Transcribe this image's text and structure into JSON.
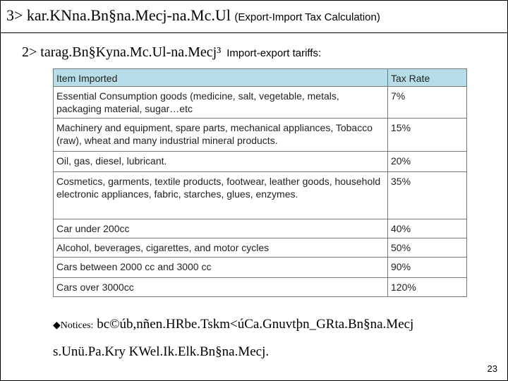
{
  "heading": {
    "title": "3> kar.KNna.Bn§na.Mecj-na.Mc.Ul",
    "subtitle": "(Export-Import Tax Calculation)"
  },
  "subheading": {
    "title": "2> tarag.Bn§Kyna.Mc.Ul-na.Mecj³",
    "subtitle": "Import-export tariffs:"
  },
  "table": {
    "header": [
      "Item Imported",
      "Tax Rate"
    ],
    "rows": [
      [
        "Essential Consumption goods (medicine, salt, vegetable, metals, packaging material, sugar…etc",
        "7%"
      ],
      [
        "Machinery and equipment, spare parts, mechanical appliances, Tobacco (raw), wheat and many industrial mineral products.",
        "15%"
      ],
      [
        "Oil, gas, diesel, lubricant.",
        "20%"
      ],
      [
        "Cosmetics, garments, textile products, footwear, leather goods, household electronic appliances, fabric, starches, glues, enzymes.",
        "35%"
      ],
      [
        "Car under 200cc",
        "40%"
      ],
      [
        "Alcohol, beverages, cigarettes, and motor cycles",
        "50%"
      ],
      [
        "Cars between 2000 cc and 3000 cc",
        "90%"
      ],
      [
        "Cars over 3000cc",
        "120%"
      ]
    ]
  },
  "notice": {
    "label": "Notices:",
    "text": "bc©úb,nñen.HRbe.Tskm<úCa.Gnuvtþn_GRta.Bn§na.Mecj s.Unü.Pa.Kry KWel.Ik.Elk.Bn§na.Mecj."
  },
  "page_number": "23"
}
